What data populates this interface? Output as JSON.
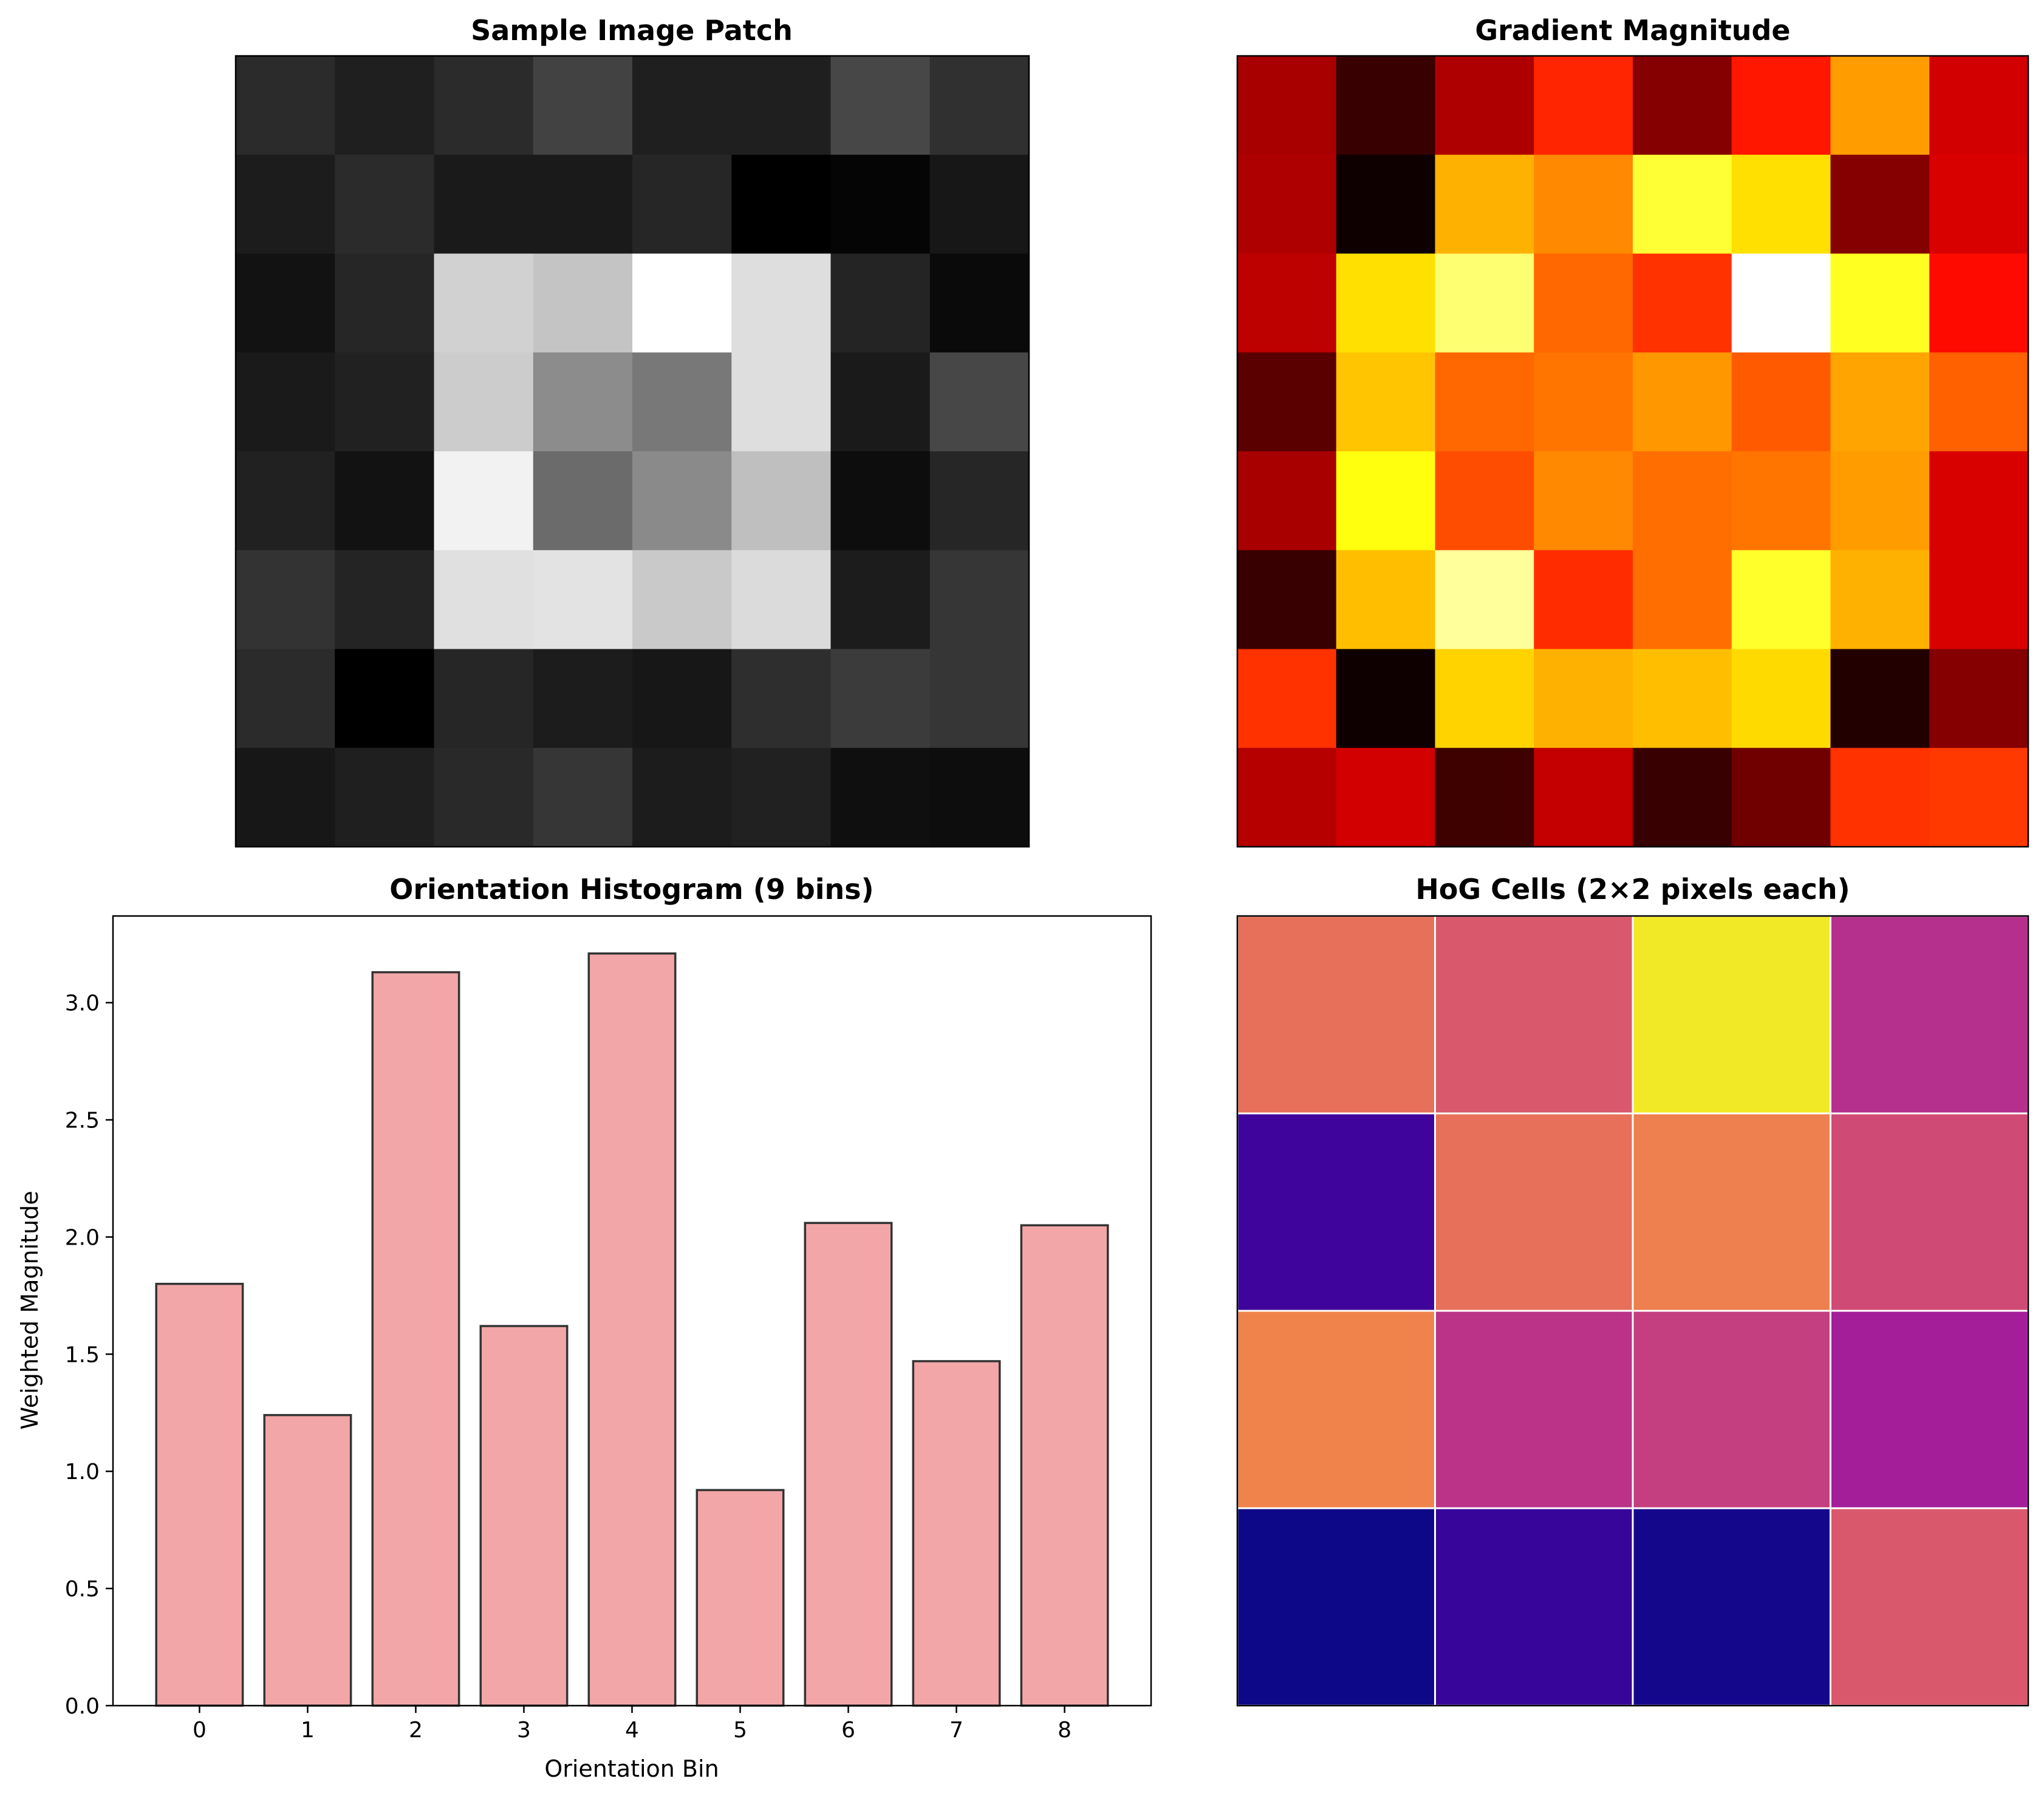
{
  "chart_data": [
    {
      "type": "heatmap",
      "title": "Sample Image Patch",
      "colormap": "gray",
      "rows": 8,
      "cols": 8,
      "values": [
        [
          0.17,
          0.12,
          0.17,
          0.26,
          0.12,
          0.12,
          0.28,
          0.19
        ],
        [
          0.11,
          0.17,
          0.1,
          0.1,
          0.15,
          0.0,
          0.02,
          0.09
        ],
        [
          0.07,
          0.15,
          0.82,
          0.77,
          1.0,
          0.87,
          0.14,
          0.04
        ],
        [
          0.1,
          0.13,
          0.8,
          0.55,
          0.47,
          0.87,
          0.1,
          0.28
        ],
        [
          0.13,
          0.07,
          0.95,
          0.42,
          0.54,
          0.75,
          0.05,
          0.15
        ],
        [
          0.2,
          0.14,
          0.88,
          0.89,
          0.79,
          0.86,
          0.11,
          0.21
        ],
        [
          0.17,
          0.0,
          0.15,
          0.11,
          0.09,
          0.18,
          0.23,
          0.21
        ],
        [
          0.09,
          0.12,
          0.16,
          0.21,
          0.11,
          0.13,
          0.06,
          0.05
        ]
      ]
    },
    {
      "type": "heatmap",
      "title": "Gradient Magnitude",
      "colormap": "hot",
      "rows": 8,
      "cols": 8,
      "values": [
        [
          0.24,
          0.08,
          0.25,
          0.42,
          0.19,
          0.4,
          0.6,
          0.3
        ],
        [
          0.25,
          0.02,
          0.63,
          0.57,
          0.8,
          0.7,
          0.19,
          0.31
        ],
        [
          0.27,
          0.7,
          0.86,
          0.52,
          0.44,
          1.0,
          0.78,
          0.38
        ],
        [
          0.13,
          0.66,
          0.52,
          0.54,
          0.59,
          0.5,
          0.61,
          0.51
        ],
        [
          0.24,
          0.76,
          0.48,
          0.57,
          0.53,
          0.54,
          0.6,
          0.31
        ],
        [
          0.08,
          0.65,
          0.9,
          0.43,
          0.53,
          0.79,
          0.63,
          0.31
        ],
        [
          0.44,
          0.02,
          0.68,
          0.63,
          0.65,
          0.69,
          0.05,
          0.19
        ],
        [
          0.26,
          0.3,
          0.09,
          0.28,
          0.08,
          0.16,
          0.44,
          0.45
        ]
      ]
    },
    {
      "type": "bar",
      "title": "Orientation Histogram (9 bins)",
      "xlabel": "Orientation Bin",
      "ylabel": "Weighted Magnitude",
      "categories": [
        "0",
        "1",
        "2",
        "3",
        "4",
        "5",
        "6",
        "7",
        "8"
      ],
      "values": [
        1.8,
        1.24,
        3.13,
        1.62,
        3.21,
        0.92,
        2.06,
        1.47,
        2.05
      ],
      "ylim": [
        0,
        3.37
      ],
      "yticks": [
        "0.0",
        "0.5",
        "1.0",
        "1.5",
        "2.0",
        "2.5",
        "3.0"
      ],
      "bar_color": "#f2a6a7",
      "edge_color": "#333333",
      "grid": false
    },
    {
      "type": "heatmap",
      "title": "HoG Cells (2×2 pixels each)",
      "colormap": "plasma",
      "rows": 4,
      "cols": 4,
      "values": [
        [
          0.78,
          0.7,
          0.98,
          0.52
        ],
        [
          0.12,
          0.78,
          0.82,
          0.64
        ],
        [
          0.83,
          0.54,
          0.59,
          0.45
        ],
        [
          0.0,
          0.1,
          0.02,
          0.7
        ]
      ]
    }
  ]
}
